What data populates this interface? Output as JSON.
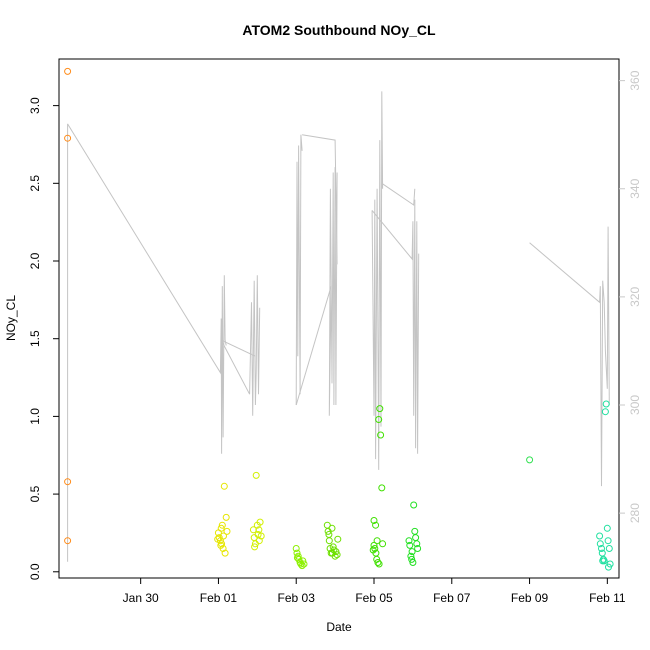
{
  "chart_data": {
    "type": "scatter",
    "title": "ATOM2 Southbound NOy_CL",
    "xlabel": "Date",
    "ylabel": "NOy_CL",
    "x_unit": "days from Jan 28",
    "xlim": [
      -0.1,
      14.3
    ],
    "ylim": [
      -0.04,
      3.3
    ],
    "x_ticks": [
      {
        "value": 2,
        "label": "Jan 30"
      },
      {
        "value": 4,
        "label": "Feb 01"
      },
      {
        "value": 6,
        "label": "Feb 03"
      },
      {
        "value": 8,
        "label": "Feb 05"
      },
      {
        "value": 10,
        "label": "Feb 07"
      },
      {
        "value": 12,
        "label": "Feb 09"
      },
      {
        "value": 14,
        "label": "Feb 11"
      }
    ],
    "y_ticks": [
      {
        "value": 0.0,
        "label": "0.0"
      },
      {
        "value": 0.5,
        "label": "0.5"
      },
      {
        "value": 1.0,
        "label": "1.0"
      },
      {
        "value": 1.5,
        "label": "1.5"
      },
      {
        "value": 2.0,
        "label": "2.0"
      },
      {
        "value": 2.5,
        "label": "2.5"
      },
      {
        "value": 3.0,
        "label": "3.0"
      }
    ],
    "y2lim": [
      268,
      364
    ],
    "y2_ticks": [
      {
        "value": 280,
        "label": "280"
      },
      {
        "value": 300,
        "label": "300"
      },
      {
        "value": 320,
        "label": "320"
      },
      {
        "value": 340,
        "label": "340"
      },
      {
        "value": 360,
        "label": "360"
      }
    ],
    "grid": false,
    "colors": {
      "trace": "#c4c4c4",
      "right_axis": "#c8c8c8",
      "frame": "#000000"
    },
    "series": [
      {
        "color": "#ff8c1a",
        "points": [
          [
            0.12,
            3.22
          ],
          [
            0.12,
            2.79
          ],
          [
            0.12,
            0.58
          ],
          [
            0.12,
            0.2
          ]
        ]
      },
      {
        "color": "#e6e600",
        "points": [
          [
            4.0,
            0.25
          ],
          [
            4.02,
            0.22
          ],
          [
            4.05,
            0.2
          ],
          [
            4.07,
            0.28
          ],
          [
            4.08,
            0.18
          ],
          [
            4.1,
            0.3
          ],
          [
            4.12,
            0.15
          ],
          [
            4.13,
            0.23
          ],
          [
            4.15,
            0.55
          ],
          [
            4.17,
            0.12
          ],
          [
            4.2,
            0.35
          ],
          [
            4.22,
            0.26
          ],
          [
            3.98,
            0.21
          ],
          [
            4.06,
            0.17
          ]
        ]
      },
      {
        "color": "#d2f000",
        "points": [
          [
            4.9,
            0.27
          ],
          [
            4.92,
            0.22
          ],
          [
            4.95,
            0.18
          ],
          [
            4.97,
            0.62
          ],
          [
            5.0,
            0.3
          ],
          [
            5.02,
            0.24
          ],
          [
            5.05,
            0.2
          ],
          [
            5.07,
            0.32
          ],
          [
            5.1,
            0.23
          ],
          [
            4.93,
            0.16
          ],
          [
            5.04,
            0.27
          ]
        ]
      },
      {
        "color": "#8cf000",
        "points": [
          [
            6.0,
            0.15
          ],
          [
            6.02,
            0.12
          ],
          [
            6.05,
            0.1
          ],
          [
            6.07,
            0.08
          ],
          [
            6.1,
            0.06
          ],
          [
            6.12,
            0.05
          ],
          [
            6.15,
            0.04
          ],
          [
            6.17,
            0.07
          ],
          [
            6.2,
            0.05
          ],
          [
            6.03,
            0.09
          ]
        ]
      },
      {
        "color": "#6ee000",
        "points": [
          [
            6.8,
            0.3
          ],
          [
            6.82,
            0.26
          ],
          [
            6.85,
            0.2
          ],
          [
            6.87,
            0.15
          ],
          [
            6.9,
            0.12
          ],
          [
            6.92,
            0.28
          ],
          [
            6.95,
            0.16
          ],
          [
            6.97,
            0.14
          ],
          [
            7.0,
            0.1
          ],
          [
            7.02,
            0.13
          ],
          [
            7.05,
            0.11
          ],
          [
            7.07,
            0.21
          ],
          [
            6.84,
            0.24
          ],
          [
            6.93,
            0.12
          ]
        ]
      },
      {
        "color": "#40e000",
        "points": [
          [
            8.0,
            0.17
          ],
          [
            8.02,
            0.15
          ],
          [
            8.05,
            0.12
          ],
          [
            8.07,
            0.08
          ],
          [
            8.1,
            0.06
          ],
          [
            8.12,
            0.98
          ],
          [
            8.15,
            1.05
          ],
          [
            8.17,
            0.88
          ],
          [
            8.2,
            0.54
          ],
          [
            8.22,
            0.18
          ],
          [
            8.0,
            0.33
          ],
          [
            8.04,
            0.3
          ],
          [
            8.08,
            0.2
          ],
          [
            7.98,
            0.14
          ],
          [
            8.13,
            0.05
          ]
        ]
      },
      {
        "color": "#20e020",
        "points": [
          [
            8.9,
            0.2
          ],
          [
            8.92,
            0.17
          ],
          [
            8.95,
            0.1
          ],
          [
            8.97,
            0.08
          ],
          [
            9.0,
            0.06
          ],
          [
            9.02,
            0.43
          ],
          [
            9.05,
            0.26
          ],
          [
            9.07,
            0.22
          ],
          [
            9.1,
            0.18
          ],
          [
            9.12,
            0.15
          ],
          [
            8.98,
            0.13
          ]
        ]
      },
      {
        "color": "#30e050",
        "points": [
          [
            12.0,
            0.72
          ]
        ]
      },
      {
        "color": "#20e0a0",
        "points": [
          [
            13.8,
            0.23
          ],
          [
            13.82,
            0.18
          ],
          [
            13.85,
            0.15
          ],
          [
            13.87,
            0.12
          ],
          [
            13.9,
            0.08
          ],
          [
            13.92,
            0.07
          ],
          [
            13.95,
            1.03
          ],
          [
            13.97,
            1.08
          ],
          [
            14.0,
            0.28
          ],
          [
            14.02,
            0.2
          ],
          [
            14.05,
            0.15
          ],
          [
            14.07,
            0.05
          ],
          [
            14.03,
            0.03
          ],
          [
            13.88,
            0.07
          ]
        ]
      }
    ],
    "trace_y2_axis": true,
    "trace_segments": [
      [
        [
          0.12,
          271
        ],
        [
          0.12,
          352
        ]
      ],
      [
        [
          0.12,
          352
        ],
        [
          4.05,
          306
        ],
        [
          4.07,
          316
        ],
        [
          4.08,
          291
        ],
        [
          4.1,
          322
        ],
        [
          4.12,
          294
        ],
        [
          4.15,
          324
        ],
        [
          4.17,
          312
        ],
        [
          4.2,
          311
        ]
      ],
      [
        [
          4.07,
          312
        ],
        [
          4.8,
          302
        ],
        [
          4.85,
          319
        ],
        [
          4.88,
          298
        ],
        [
          4.92,
          323
        ],
        [
          4.95,
          300
        ],
        [
          4.97,
          306
        ],
        [
          5.0,
          324
        ],
        [
          5.03,
          302
        ],
        [
          5.06,
          318
        ]
      ],
      [
        [
          4.95,
          309
        ],
        [
          4.07,
          312
        ]
      ],
      [
        [
          6.0,
          300
        ],
        [
          6.02,
          345
        ],
        [
          6.04,
          309
        ],
        [
          6.06,
          348
        ],
        [
          6.1,
          302
        ],
        [
          6.12,
          350
        ],
        [
          6.15,
          347
        ]
      ],
      [
        [
          6.15,
          350
        ],
        [
          7.0,
          349
        ],
        [
          7.05,
          326
        ]
      ],
      [
        [
          6.9,
          322
        ],
        [
          6.85,
          298
        ],
        [
          6.88,
          340
        ],
        [
          6.92,
          304
        ],
        [
          6.95,
          343
        ],
        [
          6.97,
          300
        ],
        [
          7.0,
          344
        ],
        [
          7.02,
          300
        ],
        [
          7.05,
          343
        ]
      ],
      [
        [
          6.0,
          300
        ],
        [
          6.9,
          322
        ]
      ],
      [
        [
          7.95,
          336
        ],
        [
          8.0,
          298
        ],
        [
          8.02,
          338
        ],
        [
          8.04,
          290
        ],
        [
          8.08,
          340
        ],
        [
          8.12,
          288
        ],
        [
          8.15,
          349
        ],
        [
          8.18,
          296
        ],
        [
          8.2,
          358
        ],
        [
          8.22,
          340
        ]
      ],
      [
        [
          7.95,
          336
        ],
        [
          8.98,
          327
        ],
        [
          9.0,
          334
        ],
        [
          9.02,
          298
        ],
        [
          9.05,
          338
        ],
        [
          9.07,
          292
        ],
        [
          9.1,
          334
        ],
        [
          9.12,
          291
        ],
        [
          9.15,
          328
        ]
      ],
      [
        [
          8.2,
          341
        ],
        [
          9.02,
          337
        ],
        [
          9.05,
          340
        ]
      ],
      [
        [
          12.0,
          330
        ],
        [
          13.8,
          319
        ],
        [
          13.82,
          322
        ],
        [
          13.85,
          285
        ],
        [
          13.88,
          323
        ],
        [
          13.92,
          319
        ],
        [
          13.95,
          310
        ],
        [
          14.0,
          303
        ],
        [
          14.02,
          333
        ],
        [
          14.05,
          300
        ]
      ]
    ]
  }
}
